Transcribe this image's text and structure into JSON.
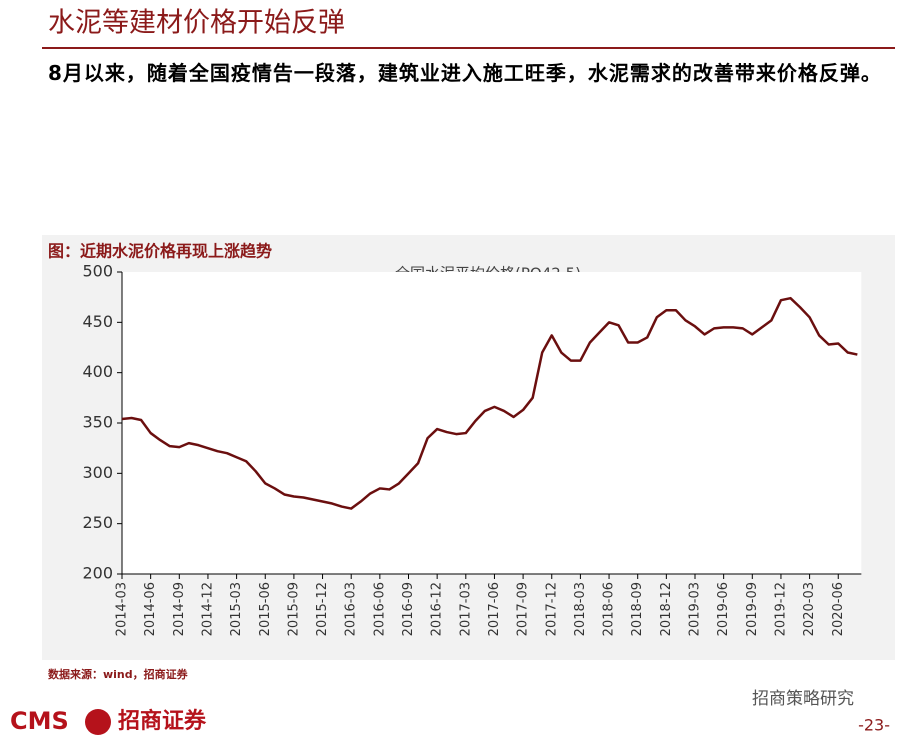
{
  "page": {
    "heading": "水泥等建材价格开始反弹",
    "body": "8月以来，随着全国疫情告一段落，建筑业进入施工旺季，水泥需求的改善带来价格反弹。",
    "source": "数据来源：wind，招商证券",
    "logo": "CMS",
    "brand": "招商证券",
    "watermark": "招商策略研究",
    "page_number": "-23-"
  },
  "chart_data": {
    "type": "line",
    "caption": "图：近期水泥价格再现上涨趋势",
    "title": "全国水泥平均价格(PO42.5)",
    "color": "#6b0f0f",
    "x": [
      "2014-03",
      "2014-04",
      "2014-05",
      "2014-06",
      "2014-07",
      "2014-08",
      "2014-09",
      "2014-10",
      "2014-11",
      "2014-12",
      "2015-01",
      "2015-02",
      "2015-03",
      "2015-04",
      "2015-05",
      "2015-06",
      "2015-07",
      "2015-08",
      "2015-09",
      "2015-10",
      "2015-11",
      "2015-12",
      "2016-01",
      "2016-02",
      "2016-03",
      "2016-04",
      "2016-05",
      "2016-06",
      "2016-07",
      "2016-08",
      "2016-09",
      "2016-10",
      "2016-11",
      "2016-12",
      "2017-01",
      "2017-02",
      "2017-03",
      "2017-04",
      "2017-05",
      "2017-06",
      "2017-07",
      "2017-08",
      "2017-09",
      "2017-10",
      "2017-11",
      "2017-12",
      "2018-01",
      "2018-02",
      "2018-03",
      "2018-04",
      "2018-05",
      "2018-06",
      "2018-07",
      "2018-08",
      "2018-09",
      "2018-10",
      "2018-11",
      "2018-12",
      "2019-01",
      "2019-02",
      "2019-03",
      "2019-04",
      "2019-05",
      "2019-06",
      "2019-07",
      "2019-08",
      "2019-09",
      "2019-10",
      "2019-11",
      "2019-12",
      "2020-01",
      "2020-02",
      "2020-03",
      "2020-04",
      "2020-05",
      "2020-06",
      "2020-07",
      "2020-08"
    ],
    "values": [
      354,
      355,
      353,
      340,
      333,
      327,
      326,
      330,
      328,
      325,
      322,
      320,
      316,
      312,
      302,
      290,
      285,
      279,
      277,
      276,
      274,
      272,
      270,
      267,
      265,
      272,
      280,
      285,
      284,
      290,
      300,
      310,
      335,
      344,
      341,
      339,
      340,
      352,
      362,
      366,
      362,
      356,
      363,
      375,
      420,
      437,
      420,
      412,
      412,
      430,
      440,
      450,
      447,
      430,
      430,
      435,
      455,
      462,
      462,
      452,
      446,
      438,
      444,
      445,
      445,
      444,
      438,
      445,
      452,
      472,
      474,
      465,
      455,
      437,
      428,
      429,
      420,
      418
    ],
    "xticks": [
      "2014-03",
      "2014-06",
      "2014-09",
      "2014-12",
      "2015-03",
      "2015-06",
      "2015-09",
      "2015-12",
      "2016-03",
      "2016-06",
      "2016-09",
      "2016-12",
      "2017-03",
      "2017-06",
      "2017-09",
      "2017-12",
      "2018-03",
      "2018-06",
      "2018-09",
      "2018-12",
      "2019-03",
      "2019-06",
      "2019-09",
      "2019-12",
      "2020-03",
      "2020-06"
    ],
    "ylim": [
      200,
      500
    ],
    "yticks": [
      200,
      250,
      300,
      350,
      400,
      450,
      500
    ]
  }
}
